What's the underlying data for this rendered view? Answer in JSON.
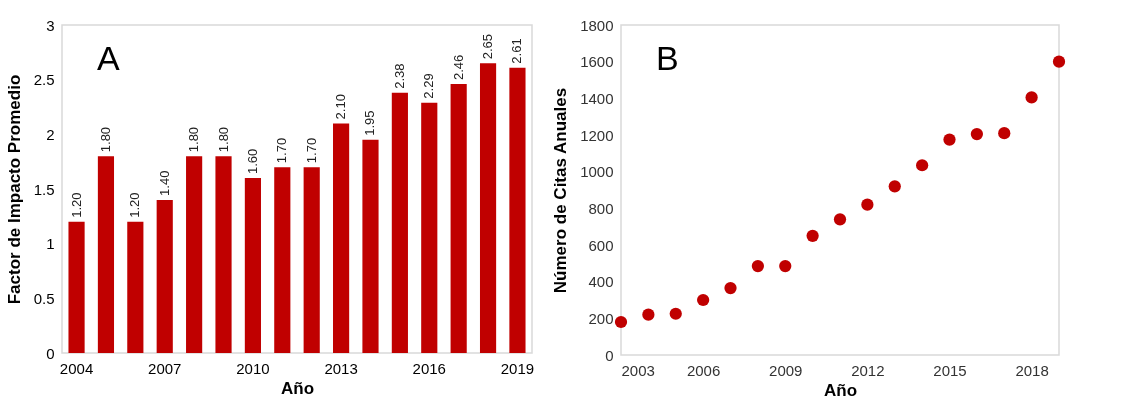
{
  "chart_data": [
    {
      "type": "bar",
      "xlabel": "Año",
      "ylabel": "Factor de Impacto Promedio",
      "annotations": [
        "A"
      ],
      "categories": [
        "2004",
        null,
        null,
        "2007",
        null,
        null,
        "2010",
        null,
        null,
        "2013",
        null,
        null,
        "2016",
        null,
        null,
        "2019"
      ],
      "values": [
        1.2,
        1.8,
        1.2,
        1.4,
        1.8,
        1.8,
        1.6,
        1.7,
        1.7,
        2.1,
        1.95,
        2.38,
        2.29,
        2.46,
        2.65,
        2.61
      ],
      "value_labels": [
        "1.20",
        "1.80",
        "1.20",
        "1.40",
        "1.80",
        "1.80",
        "1.60",
        "1.70",
        "1.70",
        "2.10",
        "1.95",
        "2.38",
        "2.29",
        "2.46",
        "2.65",
        "2.61"
      ],
      "color": "#c00000",
      "ylim": [
        0,
        3
      ],
      "yticks": [
        0,
        0.5,
        1,
        1.5,
        2,
        2.5,
        3
      ],
      "grid": false
    },
    {
      "type": "scatter",
      "xlabel": "Año",
      "ylabel": "Número de Citas Anuales",
      "annotations": [
        "B"
      ],
      "x": [
        2003,
        2004,
        2005,
        2006,
        2007,
        2008,
        2009,
        2010,
        2011,
        2012,
        2013,
        2014,
        2015,
        2016,
        2017,
        2018,
        2019
      ],
      "values": [
        180,
        220,
        225,
        300,
        365,
        485,
        485,
        650,
        740,
        820,
        920,
        1035,
        1175,
        1205,
        1210,
        1405,
        1600
      ],
      "color": "#c00000",
      "marker": "circle",
      "xlim": [
        2003,
        2019
      ],
      "xticks": [
        2003,
        2006,
        2009,
        2012,
        2015,
        2018
      ],
      "ylim": [
        0,
        1800
      ],
      "yticks": [
        0,
        200,
        400,
        600,
        800,
        1000,
        1200,
        1400,
        1600,
        1800
      ],
      "grid": false
    }
  ]
}
